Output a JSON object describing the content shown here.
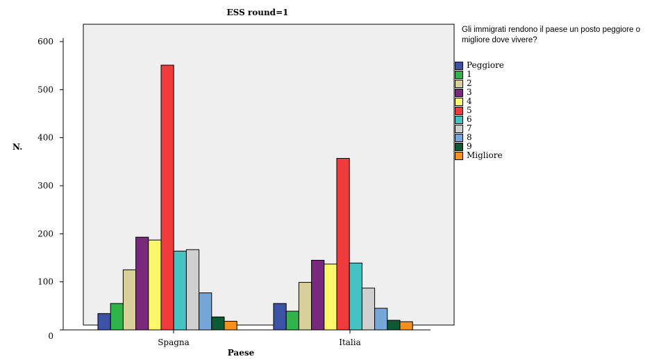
{
  "chart_data": {
    "type": "bar",
    "title": "ESS round=1",
    "xlabel": "Paese",
    "ylabel": "N.",
    "categories": [
      "Spagna",
      "Italia"
    ],
    "ylim": [
      0,
      600
    ],
    "yticks": [
      0,
      100,
      200,
      300,
      400,
      500,
      600
    ],
    "legend_title": "Gli immigrati rendono il paese un posto peggiore o migliore dove vivere?",
    "legend_placement": "right",
    "grid": false,
    "series": [
      {
        "name": "Peggiore",
        "color": "#3c52a4",
        "values": [
          34,
          55
        ]
      },
      {
        "name": "1",
        "color": "#2fb34a",
        "values": [
          55,
          39
        ]
      },
      {
        "name": "2",
        "color": "#d9cf9a",
        "values": [
          125,
          99
        ]
      },
      {
        "name": "3",
        "color": "#7a2a7d",
        "values": [
          193,
          145
        ]
      },
      {
        "name": "4",
        "color": "#fdf76b",
        "values": [
          187,
          137
        ]
      },
      {
        "name": "5",
        "color": "#ef3b3b",
        "values": [
          551,
          357
        ]
      },
      {
        "name": "6",
        "color": "#46c3c3",
        "values": [
          164,
          139
        ]
      },
      {
        "name": "7",
        "color": "#cfcfcf",
        "values": [
          167,
          87
        ]
      },
      {
        "name": "8",
        "color": "#77a7d9",
        "values": [
          77,
          45
        ]
      },
      {
        "name": "9",
        "color": "#0f5a32",
        "values": [
          27,
          20
        ]
      },
      {
        "name": "Migliore",
        "color": "#f58f1d",
        "values": [
          18,
          17
        ]
      }
    ]
  }
}
